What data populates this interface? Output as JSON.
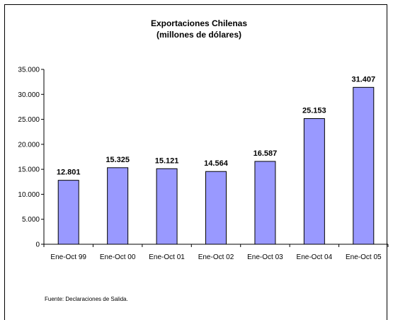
{
  "chart_data": {
    "type": "bar",
    "title": "Exportaciones Chilenas",
    "subtitle": "(millones de dólares)",
    "categories": [
      "Ene-Oct 99",
      "Ene-Oct 00",
      "Ene-Oct 01",
      "Ene-Oct 02",
      "Ene-Oct 03",
      "Ene-Oct 04",
      "Ene-Oct 05"
    ],
    "values": [
      12801,
      15325,
      15121,
      14564,
      16587,
      25153,
      31407
    ],
    "value_labels": [
      "12.801",
      "15.325",
      "15.121",
      "14.564",
      "16.587",
      "25.153",
      "31.407"
    ],
    "yticks": [
      0,
      5000,
      10000,
      15000,
      20000,
      25000,
      30000,
      35000
    ],
    "ytick_labels": [
      "0",
      "5.000",
      "10.000",
      "15.000",
      "20.000",
      "25.000",
      "30.000",
      "35.000"
    ],
    "ylim": [
      0,
      35000
    ],
    "grid": false,
    "legend": "none",
    "bar_color": "#9999ff"
  },
  "source_note": "Fuente: Declaraciones de Salida."
}
